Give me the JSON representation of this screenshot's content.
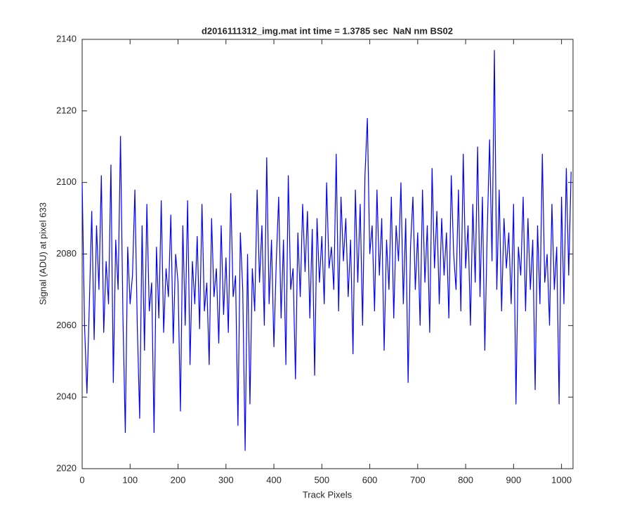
{
  "chart_data": {
    "type": "line",
    "title": "d2016111312_img.mat int time = 1.3785 sec  NaN nm BS02",
    "xlabel": "Track Pixels",
    "ylabel": "Signal (ADU) at pixel 633",
    "xlim": [
      0,
      1024
    ],
    "ylim": [
      2020,
      2140
    ],
    "xticks": [
      0,
      100,
      200,
      300,
      400,
      500,
      600,
      700,
      800,
      900,
      1000
    ],
    "yticks": [
      2020,
      2040,
      2060,
      2080,
      2100,
      2120,
      2140
    ],
    "grid": false,
    "series": [
      {
        "name": "signal",
        "color": "#0000ff",
        "x": [
          0,
          5,
          10,
          15,
          20,
          25,
          30,
          35,
          40,
          45,
          50,
          55,
          60,
          65,
          70,
          75,
          80,
          85,
          90,
          95,
          100,
          105,
          110,
          115,
          120,
          125,
          130,
          135,
          140,
          145,
          150,
          155,
          160,
          165,
          170,
          175,
          180,
          185,
          190,
          195,
          200,
          205,
          210,
          215,
          220,
          225,
          230,
          235,
          240,
          245,
          250,
          255,
          260,
          265,
          270,
          275,
          280,
          285,
          290,
          295,
          300,
          305,
          310,
          315,
          320,
          325,
          330,
          335,
          340,
          345,
          350,
          355,
          360,
          365,
          370,
          375,
          380,
          385,
          390,
          395,
          400,
          405,
          410,
          415,
          420,
          425,
          430,
          435,
          440,
          445,
          450,
          455,
          460,
          465,
          470,
          475,
          480,
          485,
          490,
          495,
          500,
          505,
          510,
          515,
          520,
          525,
          530,
          535,
          540,
          545,
          550,
          555,
          560,
          565,
          570,
          575,
          580,
          585,
          590,
          595,
          600,
          605,
          610,
          615,
          620,
          625,
          630,
          635,
          640,
          645,
          650,
          655,
          660,
          665,
          670,
          675,
          680,
          685,
          690,
          695,
          700,
          705,
          710,
          715,
          720,
          725,
          730,
          735,
          740,
          745,
          750,
          755,
          760,
          765,
          770,
          775,
          780,
          785,
          790,
          795,
          800,
          805,
          810,
          815,
          820,
          825,
          830,
          835,
          840,
          845,
          850,
          855,
          860,
          865,
          870,
          875,
          880,
          885,
          890,
          895,
          900,
          905,
          910,
          915,
          920,
          925,
          930,
          935,
          940,
          945,
          950,
          955,
          960,
          965,
          970,
          975,
          980,
          985,
          990,
          995,
          1000,
          1005,
          1010,
          1015,
          1020
        ],
        "values": [
          2100,
          2060,
          2041,
          2066,
          2092,
          2056,
          2088,
          2070,
          2102,
          2058,
          2078,
          2066,
          2105,
          2044,
          2084,
          2070,
          2113,
          2063,
          2030,
          2082,
          2066,
          2074,
          2098,
          2060,
          2034,
          2088,
          2053,
          2094,
          2064,
          2072,
          2030,
          2082,
          2062,
          2095,
          2058,
          2076,
          2068,
          2091,
          2055,
          2080,
          2072,
          2036,
          2088,
          2060,
          2095,
          2049,
          2078,
          2066,
          2085,
          2059,
          2094,
          2064,
          2072,
          2049,
          2090,
          2068,
          2076,
          2055,
          2088,
          2063,
          2079,
          2058,
          2097,
          2068,
          2074,
          2032,
          2086,
          2070,
          2025,
          2080,
          2038,
          2076,
          2064,
          2098,
          2072,
          2088,
          2060,
          2107,
          2066,
          2084,
          2054,
          2078,
          2096,
          2062,
          2084,
          2049,
          2102,
          2070,
          2076,
          2045,
          2086,
          2068,
          2094,
          2075,
          2092,
          2062,
          2087,
          2046,
          2090,
          2072,
          2085,
          2066,
          2100,
          2076,
          2082,
          2070,
          2108,
          2064,
          2096,
          2078,
          2090,
          2068,
          2084,
          2052,
          2098,
          2072,
          2094,
          2060,
          2102,
          2118,
          2080,
          2088,
          2064,
          2098,
          2074,
          2090,
          2053,
          2084,
          2070,
          2096,
          2062,
          2088,
          2078,
          2100,
          2066,
          2090,
          2044,
          2082,
          2096,
          2070,
          2086,
          2060,
          2098,
          2072,
          2088,
          2058,
          2104,
          2076,
          2092,
          2066,
          2090,
          2074,
          2086,
          2062,
          2102,
          2080,
          2070,
          2098,
          2064,
          2108,
          2076,
          2088,
          2060,
          2094,
          2072,
          2110,
          2068,
          2096,
          2053,
          2086,
          2112,
          2078,
          2137,
          2070,
          2098,
          2064,
          2090,
          2076,
          2086,
          2066,
          2094,
          2038,
          2082,
          2074,
          2096,
          2064,
          2090,
          2070,
          2084,
          2042,
          2088,
          2066,
          2108,
          2072,
          2080,
          2060,
          2094,
          2070,
          2082,
          2038,
          2096,
          2066,
          2104,
          2074,
          2103
        ]
      }
    ]
  }
}
